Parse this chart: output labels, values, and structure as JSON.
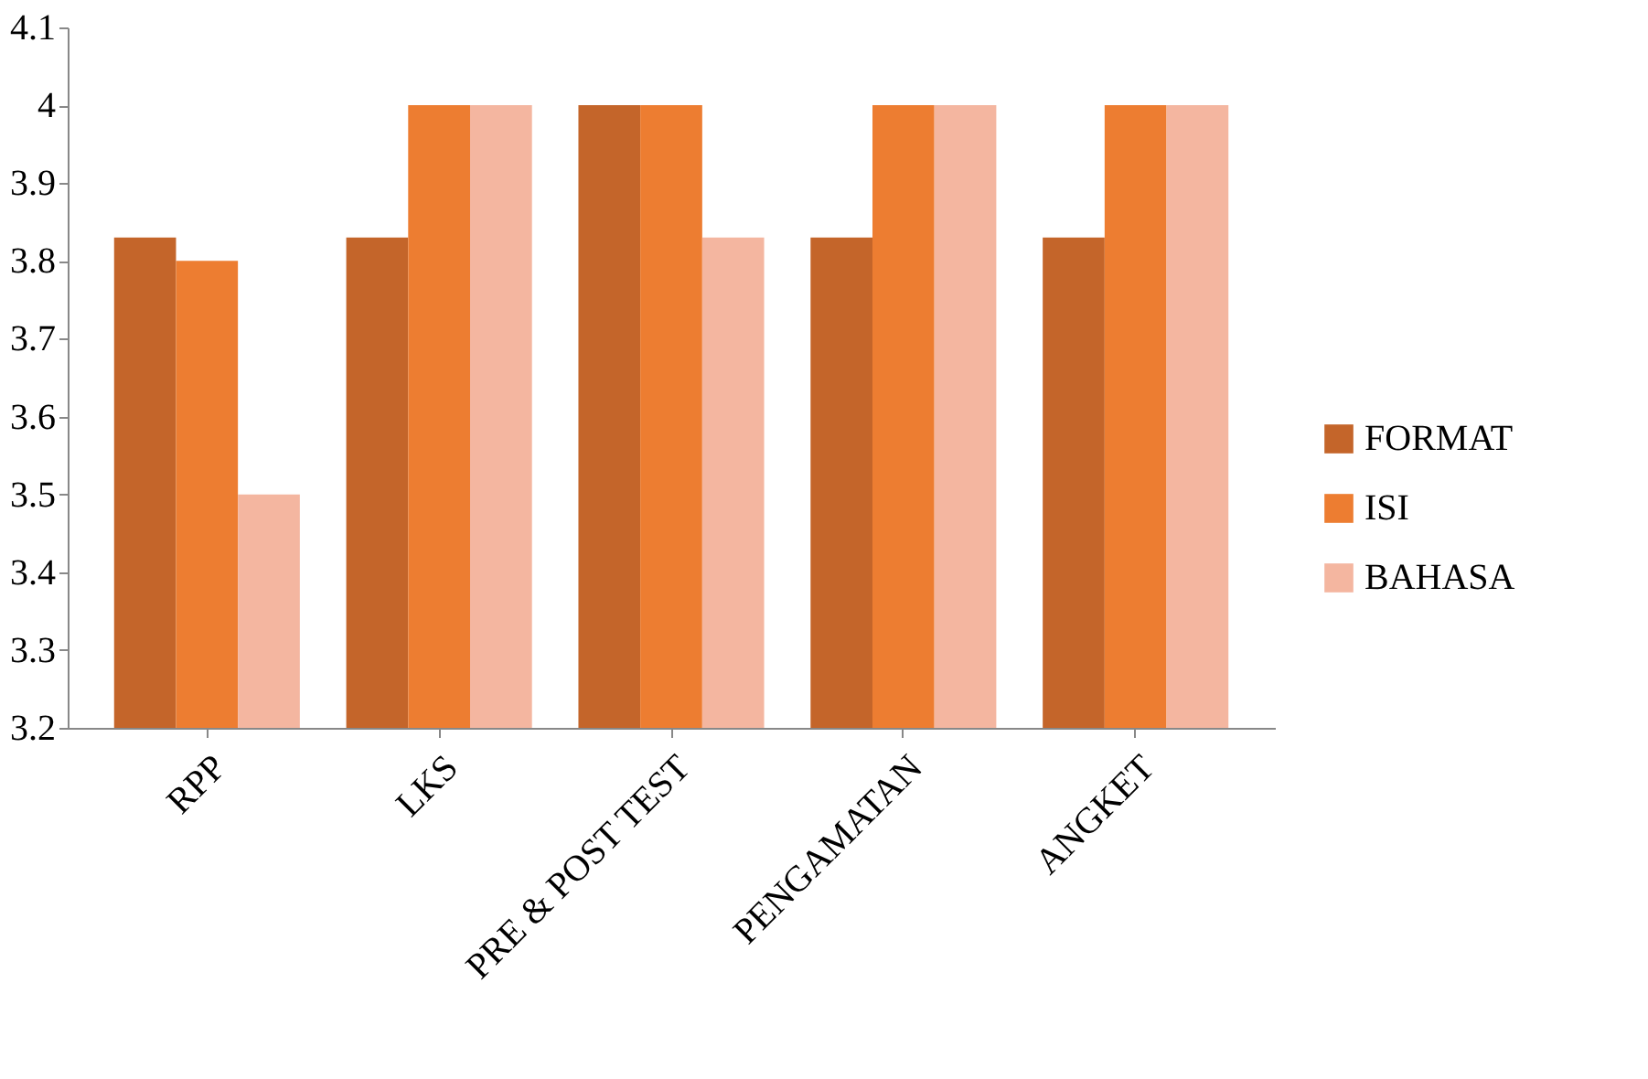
{
  "chart_data": {
    "type": "bar",
    "categories": [
      "RPP",
      "LKS",
      "PRE & POST TEST",
      "PENGAMATAN",
      "ANGKET"
    ],
    "series": [
      {
        "name": "FORMAT",
        "color": "#c4652a",
        "values": [
          3.83,
          3.83,
          4,
          3.83,
          3.83
        ]
      },
      {
        "name": "ISI",
        "color": "#ed7d31",
        "values": [
          3.8,
          4,
          4,
          4,
          4
        ]
      },
      {
        "name": "BAHASA",
        "color": "#f4b6a0",
        "values": [
          3.5,
          4,
          3.83,
          4,
          4
        ]
      }
    ],
    "ylim": [
      3.2,
      4.1
    ],
    "yticks": [
      3.2,
      3.3,
      3.4,
      3.5,
      3.6,
      3.7,
      3.8,
      3.9,
      4,
      4.1
    ],
    "grid": false,
    "legend": "right"
  }
}
